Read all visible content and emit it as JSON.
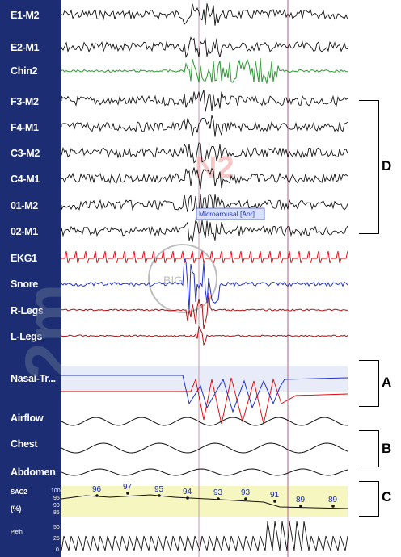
{
  "channels": [
    {
      "label": "E1-M2"
    },
    {
      "label": "E2-M1"
    },
    {
      "label": "Chin2"
    },
    {
      "label": "F3-M2"
    },
    {
      "label": "F4-M1"
    },
    {
      "label": "C3-M2"
    },
    {
      "label": "C4-M1"
    },
    {
      "label": "01-M2"
    },
    {
      "label": "02-M1"
    },
    {
      "label": "EKG1"
    },
    {
      "label": "Snore"
    },
    {
      "label": "R-Legs"
    },
    {
      "label": "L-Legs"
    },
    {
      "label": "Nasal-Tr..."
    },
    {
      "label": "Airflow"
    },
    {
      "label": "Chest"
    },
    {
      "label": "Abdomen"
    },
    {
      "label": "SAO2"
    },
    {
      "label": "(%)"
    },
    {
      "label": "Pleth"
    }
  ],
  "sat_scale": {
    "s100": "100",
    "s95": "95",
    "s90": "90",
    "s85": "85",
    "s50": "50",
    "s25": "25",
    "s0": "0"
  },
  "epoch_label": "2m",
  "event": {
    "annotation": "Microarousal [Aor]"
  },
  "watermark": {
    "stage": "N2",
    "camera": "BIG"
  },
  "sat_values": [
    "96",
    "97",
    "95",
    "94",
    "93",
    "93",
    "91",
    "89",
    "89"
  ],
  "brackets": {
    "eeg": "D",
    "nasal": "A",
    "chest": "B",
    "sat": "C"
  },
  "colors": {
    "panel": "#1c2d73",
    "eeg": "#111111",
    "chin": "#2a9a30",
    "ekg": "#e00000",
    "snore": "#2233cc",
    "legs": "#b01010",
    "event_line": "#d090b0",
    "sat_band": "#f6f6c0"
  }
}
